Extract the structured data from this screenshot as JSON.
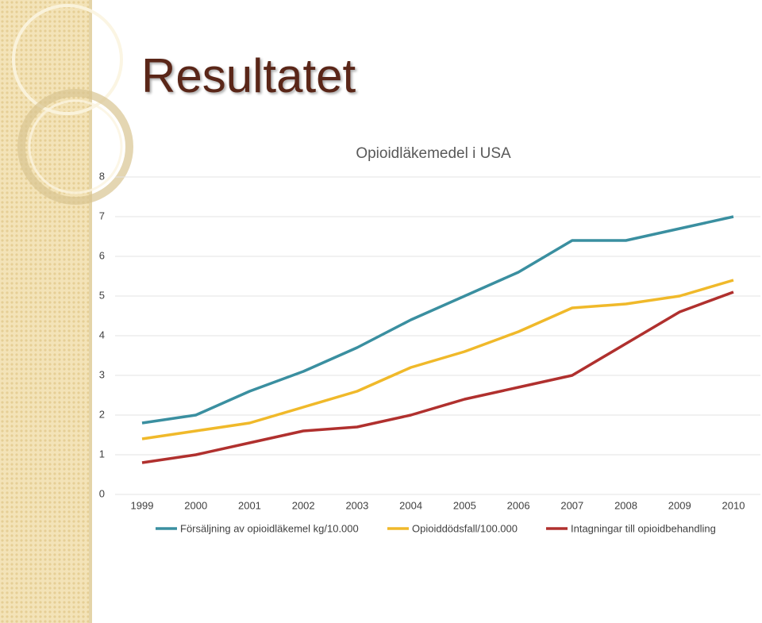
{
  "slide_title": "Resultatet",
  "chart_data": {
    "type": "line",
    "title": "Opioidläkemedel i USA",
    "categories": [
      "1999",
      "2000",
      "2001",
      "2002",
      "2003",
      "2004",
      "2005",
      "2006",
      "2007",
      "2008",
      "2009",
      "2010"
    ],
    "series": [
      {
        "name": "Försäljning av opioidläkemel kg/10.000",
        "color": "#3a8fa0",
        "values": [
          1.8,
          2.0,
          2.6,
          3.1,
          3.7,
          4.4,
          5.0,
          5.6,
          6.4,
          6.4,
          6.7,
          7.0
        ]
      },
      {
        "name": "Opioiddödsfall/100.000",
        "color": "#f0b92a",
        "values": [
          1.4,
          1.6,
          1.8,
          2.2,
          2.6,
          3.2,
          3.6,
          4.1,
          4.7,
          4.8,
          5.0,
          5.4
        ]
      },
      {
        "name": "Intagningar till opioidbehandling",
        "color": "#b0302e",
        "values": [
          0.8,
          1.0,
          1.3,
          1.6,
          1.7,
          2.0,
          2.4,
          2.7,
          3.0,
          3.8,
          4.6,
          5.1
        ]
      }
    ],
    "ylim": [
      0,
      8
    ],
    "yticks": [
      0,
      1,
      2,
      3,
      4,
      5,
      6,
      7,
      8
    ],
    "grid": true,
    "legend": "bottom"
  }
}
